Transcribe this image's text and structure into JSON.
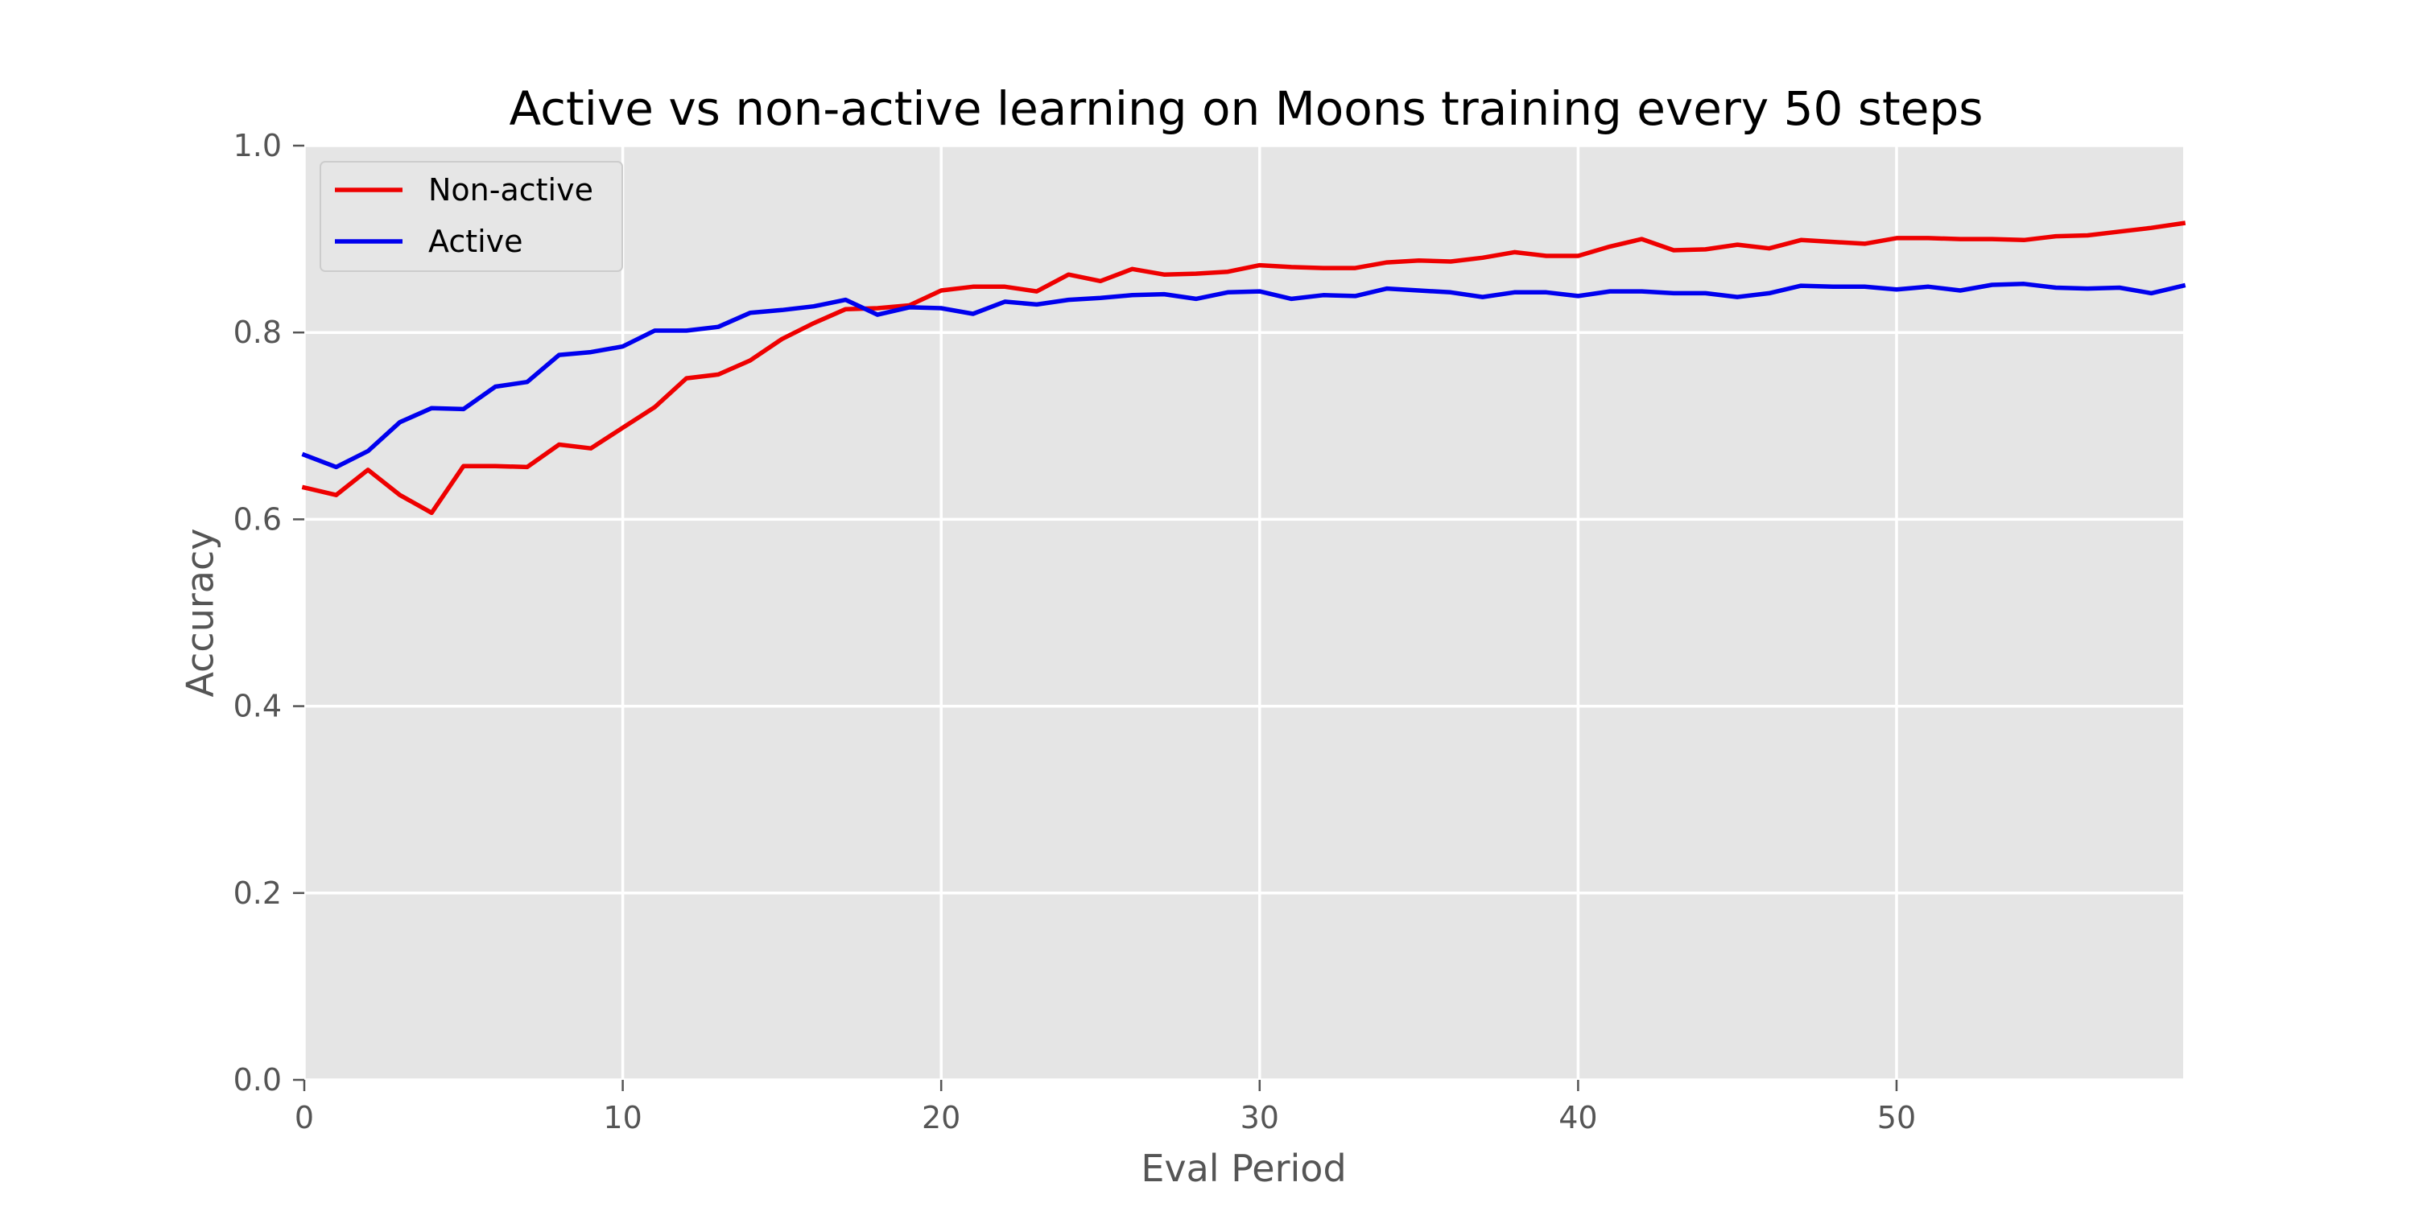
{
  "chart_data": {
    "type": "line",
    "title": "Active vs non-active learning on Moons training every 50 steps",
    "xlabel": "Eval Period",
    "ylabel": "Accuracy",
    "xlim": [
      0,
      59
    ],
    "ylim": [
      0.0,
      1.0
    ],
    "xticks": [
      0,
      10,
      20,
      30,
      40,
      50
    ],
    "yticks": [
      0.0,
      0.2,
      0.4,
      0.6,
      0.8,
      1.0
    ],
    "xtick_labels": [
      "0",
      "10",
      "20",
      "30",
      "40",
      "50"
    ],
    "ytick_labels": [
      "0.0",
      "0.2",
      "0.4",
      "0.6",
      "0.8",
      "1.0"
    ],
    "grid": true,
    "legend_position": "upper-left",
    "background_color": "#e5e5e5",
    "x": [
      0,
      1,
      2,
      3,
      4,
      5,
      6,
      7,
      8,
      9,
      10,
      11,
      12,
      13,
      14,
      15,
      16,
      17,
      18,
      19,
      20,
      21,
      22,
      23,
      24,
      25,
      26,
      27,
      28,
      29,
      30,
      31,
      32,
      33,
      34,
      35,
      36,
      37,
      38,
      39,
      40,
      41,
      42,
      43,
      44,
      45,
      46,
      47,
      48,
      49,
      50,
      51,
      52,
      53,
      54,
      55,
      56,
      57,
      58,
      59
    ],
    "series": [
      {
        "name": "Non-active",
        "color": "#ee0000",
        "values": [
          0.634,
          0.626,
          0.653,
          0.626,
          0.607,
          0.657,
          0.657,
          0.656,
          0.68,
          0.676,
          0.698,
          0.72,
          0.751,
          0.755,
          0.77,
          0.793,
          0.81,
          0.825,
          0.826,
          0.829,
          0.845,
          0.849,
          0.849,
          0.844,
          0.862,
          0.855,
          0.868,
          0.862,
          0.863,
          0.865,
          0.872,
          0.87,
          0.869,
          0.869,
          0.875,
          0.877,
          0.876,
          0.88,
          0.886,
          0.882,
          0.882,
          0.892,
          0.9,
          0.888,
          0.889,
          0.894,
          0.89,
          0.899,
          0.897,
          0.895,
          0.901,
          0.901,
          0.9,
          0.9,
          0.899,
          0.903,
          0.904,
          0.908,
          0.912,
          0.917
        ]
      },
      {
        "name": "Active",
        "color": "#0000ee",
        "values": [
          0.669,
          0.656,
          0.673,
          0.704,
          0.719,
          0.718,
          0.742,
          0.747,
          0.776,
          0.779,
          0.785,
          0.802,
          0.802,
          0.806,
          0.821,
          0.824,
          0.828,
          0.835,
          0.819,
          0.827,
          0.826,
          0.82,
          0.833,
          0.83,
          0.835,
          0.837,
          0.84,
          0.841,
          0.836,
          0.843,
          0.844,
          0.836,
          0.84,
          0.839,
          0.847,
          0.845,
          0.843,
          0.838,
          0.843,
          0.843,
          0.839,
          0.844,
          0.844,
          0.842,
          0.842,
          0.838,
          0.842,
          0.85,
          0.849,
          0.849,
          0.846,
          0.849,
          0.845,
          0.851,
          0.852,
          0.848,
          0.847,
          0.848,
          0.842,
          0.85
        ]
      }
    ]
  }
}
